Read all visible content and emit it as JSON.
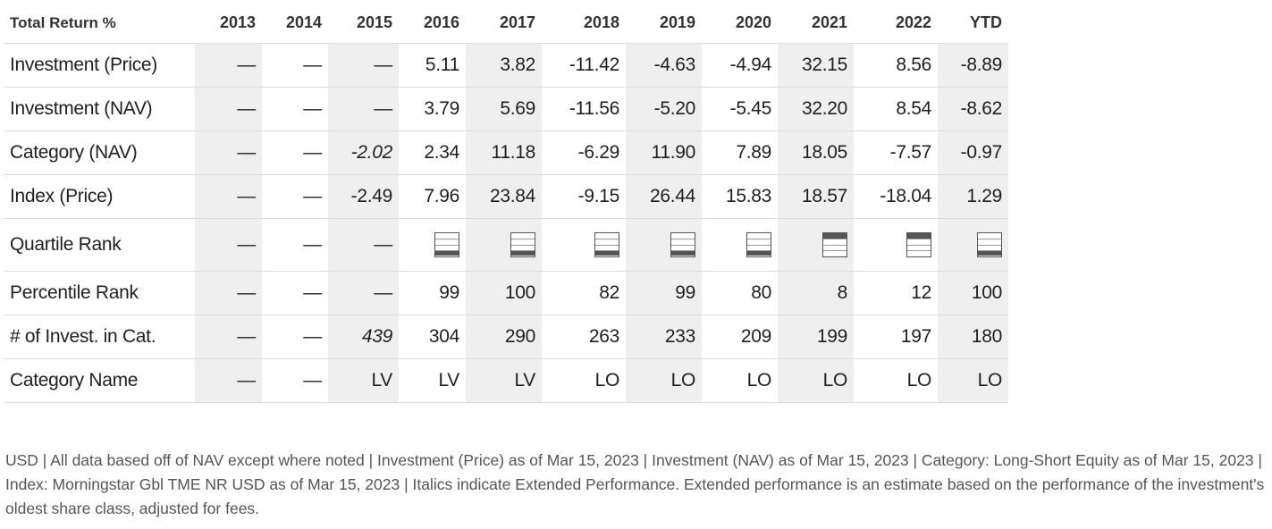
{
  "table": {
    "header": [
      "Total Return %",
      "2013",
      "2014",
      "2015",
      "2016",
      "2017",
      "2018",
      "2019",
      "2020",
      "2021",
      "2022",
      "YTD"
    ],
    "rows": [
      {
        "label": "Investment (Price)",
        "cells": [
          "—",
          "—",
          "—",
          "5.11",
          "3.82",
          "-11.42",
          "-4.63",
          "-4.94",
          "32.15",
          "8.56",
          "-8.89"
        ]
      },
      {
        "label": "Investment (NAV)",
        "cells": [
          "—",
          "—",
          "—",
          "3.79",
          "5.69",
          "-11.56",
          "-5.20",
          "-5.45",
          "32.20",
          "8.54",
          "-8.62"
        ]
      },
      {
        "label": "Category (NAV)",
        "cells": [
          "—",
          "—",
          "-2.02",
          "2.34",
          "11.18",
          "-6.29",
          "11.90",
          "7.89",
          "18.05",
          "-7.57",
          "-0.97"
        ]
      },
      {
        "label": "Index (Price)",
        "cells": [
          "—",
          "—",
          "-2.49",
          "7.96",
          "23.84",
          "-9.15",
          "26.44",
          "15.83",
          "18.57",
          "-18.04",
          "1.29"
        ]
      },
      {
        "label": "Quartile Rank",
        "cells": [
          "—",
          "—",
          "—"
        ],
        "quartiles": [
          4,
          4,
          4,
          4,
          4,
          1,
          1,
          4
        ]
      },
      {
        "label": "Percentile Rank",
        "cells": [
          "—",
          "—",
          "—",
          "99",
          "100",
          "82",
          "99",
          "80",
          "8",
          "12",
          "100"
        ]
      },
      {
        "label": "# of Invest. in Cat.",
        "cells": [
          "—",
          "—",
          "439",
          "304",
          "290",
          "263",
          "233",
          "209",
          "199",
          "197",
          "180"
        ]
      },
      {
        "label": "Category Name",
        "cells": [
          "—",
          "—",
          "LV",
          "LV",
          "LV",
          "LO",
          "LO",
          "LO",
          "LO",
          "LO",
          "LO"
        ]
      }
    ]
  },
  "footnote": "USD | All data based off of NAV except where noted  | Investment (Price) as of Mar 15, 2023 | Investment (NAV) as of Mar 15, 2023 | Category: Long-Short Equity as of Mar 15, 2023 | Index: Morningstar Gbl TME NR USD as of Mar 15, 2023 | Italics indicate Extended Performance. Extended performance is an estimate based on the performance of the investment's oldest share class, adjusted for fees.",
  "colors": {
    "shade": "#efefef",
    "border": "#dcdcdc",
    "quartile_fill": "#555555",
    "footnote_text": "#555555"
  }
}
